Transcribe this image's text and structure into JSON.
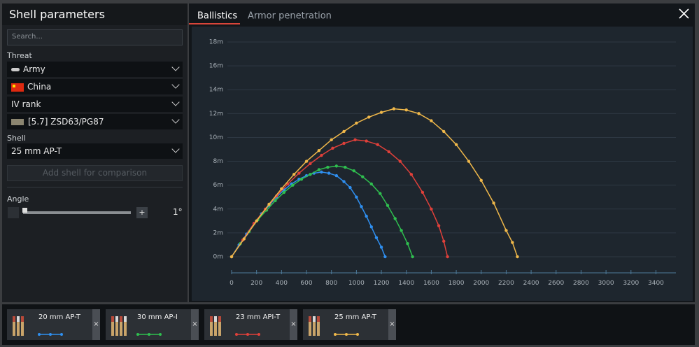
{
  "panel": {
    "title": "Shell parameters",
    "search_placeholder": "Search...",
    "threat_label": "Threat",
    "threat_type": "Army",
    "country": "China",
    "rank": "IV rank",
    "vehicle": "[5.7] ZSD63/PG87",
    "shell_label": "Shell",
    "shell": "25 mm AP-T",
    "add_button": "Add shell for comparison",
    "angle_label": "Angle",
    "angle_value": "1°"
  },
  "tabs": [
    "Ballistics",
    "Armor penetration"
  ],
  "chart_data": {
    "type": "line",
    "grid": true,
    "xlim": [
      0,
      3560
    ],
    "ylim": [
      0,
      18
    ],
    "xticks": [
      0,
      200,
      400,
      600,
      800,
      1000,
      1200,
      1400,
      1600,
      1800,
      2000,
      2200,
      2400,
      2600,
      2800,
      3000,
      3200,
      3400
    ],
    "yticks": [
      {
        "value": 0,
        "label": "0m"
      },
      {
        "value": 2,
        "label": "2m"
      },
      {
        "value": 4,
        "label": "4m"
      },
      {
        "value": 6,
        "label": "6m"
      },
      {
        "value": 8,
        "label": "8m"
      },
      {
        "value": 10,
        "label": "10m"
      },
      {
        "value": 12,
        "label": "12m"
      },
      {
        "value": 14,
        "label": "14m"
      },
      {
        "value": 16,
        "label": "16m"
      },
      {
        "value": 18,
        "label": "18m"
      }
    ],
    "series": [
      {
        "name": "20 mm AP-T",
        "color": "#2f8ff0",
        "x": [
          0,
          60,
          120,
          180,
          240,
          300,
          360,
          420,
          480,
          540,
          600,
          660,
          720,
          780,
          840,
          900,
          950,
          1000,
          1040,
          1080,
          1120,
          1160,
          1200,
          1230
        ],
        "values": [
          0,
          1.0,
          1.9,
          2.8,
          3.6,
          4.3,
          5.0,
          5.6,
          6.1,
          6.5,
          6.8,
          7.0,
          7.1,
          7.0,
          6.8,
          6.3,
          5.8,
          5.0,
          4.2,
          3.4,
          2.5,
          1.6,
          0.8,
          0
        ]
      },
      {
        "name": "30 mm AP-I",
        "color": "#2fbf4f",
        "x": [
          0,
          70,
          140,
          210,
          280,
          350,
          420,
          490,
          560,
          630,
          700,
          770,
          840,
          910,
          980,
          1050,
          1120,
          1190,
          1250,
          1310,
          1360,
          1410,
          1450
        ],
        "values": [
          0,
          1.1,
          2.1,
          3.1,
          3.9,
          4.7,
          5.4,
          6.0,
          6.5,
          6.9,
          7.3,
          7.5,
          7.6,
          7.5,
          7.2,
          6.7,
          6.1,
          5.3,
          4.3,
          3.2,
          2.2,
          1.1,
          0
        ]
      },
      {
        "name": "23 mm API-T",
        "color": "#e0403a",
        "x": [
          0,
          90,
          180,
          270,
          360,
          450,
          540,
          630,
          720,
          810,
          900,
          990,
          1080,
          1170,
          1260,
          1350,
          1440,
          1530,
          1600,
          1660,
          1700,
          1730
        ],
        "values": [
          0,
          1.4,
          2.8,
          4.0,
          5.1,
          6.1,
          7.0,
          7.8,
          8.5,
          9.1,
          9.5,
          9.8,
          9.7,
          9.4,
          8.8,
          8.0,
          6.9,
          5.4,
          4.0,
          2.6,
          1.3,
          0
        ]
      },
      {
        "name": "25 mm AP-T",
        "color": "#f0b84a",
        "x": [
          0,
          100,
          200,
          300,
          400,
          500,
          600,
          700,
          800,
          900,
          1000,
          1100,
          1200,
          1300,
          1400,
          1500,
          1600,
          1700,
          1800,
          1900,
          2000,
          2100,
          2200,
          2250,
          2290
        ],
        "values": [
          0,
          1.5,
          3.0,
          4.4,
          5.7,
          6.9,
          8.0,
          8.9,
          9.8,
          10.5,
          11.2,
          11.7,
          12.1,
          12.4,
          12.3,
          12.0,
          11.4,
          10.5,
          9.4,
          8.0,
          6.4,
          4.5,
          2.2,
          1.2,
          0
        ]
      }
    ]
  }
}
